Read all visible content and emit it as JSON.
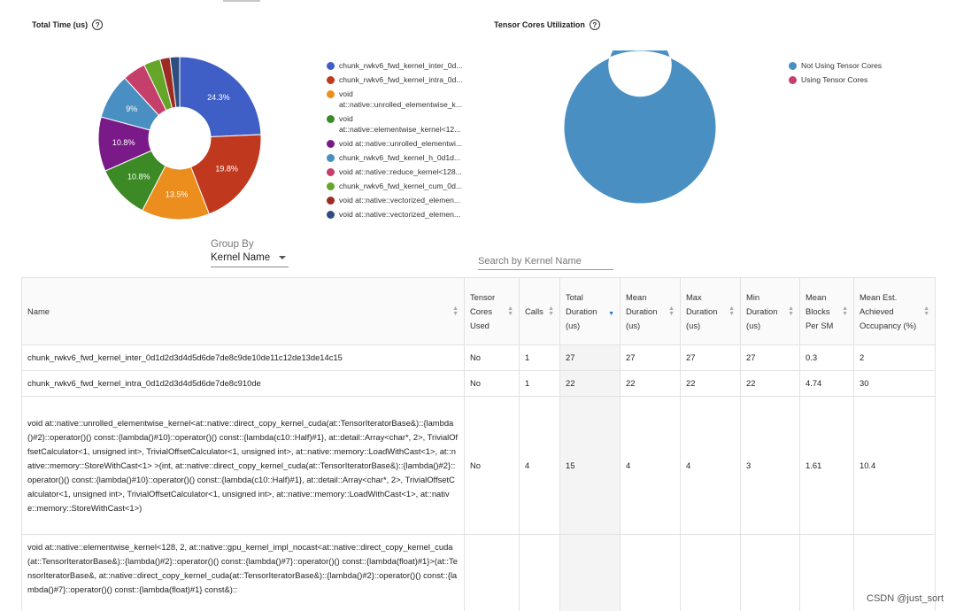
{
  "total_time": {
    "title": "Total Time (us)",
    "help_icon": "?",
    "slices": [
      {
        "value": 24.3,
        "label": "24.3%",
        "color": "#3f5fc7"
      },
      {
        "value": 19.8,
        "label": "19.8%",
        "color": "#c0391f"
      },
      {
        "value": 13.5,
        "label": "13.5%",
        "color": "#eb8e1e"
      },
      {
        "value": 10.8,
        "label": "10.8%",
        "color": "#3b8a25"
      },
      {
        "value": 10.8,
        "label": "10.8%",
        "color": "#7a1a88"
      },
      {
        "value": 9.0,
        "label": "9%",
        "color": "#4a8fc2"
      },
      {
        "value": 4.6,
        "label": "",
        "color": "#c43f6a"
      },
      {
        "value": 3.3,
        "label": "",
        "color": "#64a52a"
      },
      {
        "value": 2.0,
        "label": "",
        "color": "#9e2b23"
      },
      {
        "value": 1.9,
        "label": "",
        "color": "#2e4f7e"
      }
    ],
    "legend": [
      {
        "text": "chunk_rwkv6_fwd_kernel_inter_0d...",
        "color": "#3f5fc7"
      },
      {
        "text": "chunk_rwkv6_fwd_kernel_intra_0d...",
        "color": "#c0391f"
      },
      {
        "text": "void\nat::native::unrolled_elementwise_k...",
        "color": "#eb8e1e"
      },
      {
        "text": "void\nat::native::elementwise_kernel<12...",
        "color": "#3b8a25"
      },
      {
        "text": "void at::native::unrolled_elementwi...",
        "color": "#7a1a88"
      },
      {
        "text": "chunk_rwkv6_fwd_kernel_h_0d1d...",
        "color": "#4a8fc2"
      },
      {
        "text": "void at::native::reduce_kernel<128...",
        "color": "#c43f6a"
      },
      {
        "text": "chunk_rwkv6_fwd_kernel_cum_0d...",
        "color": "#64a52a"
      },
      {
        "text": "void at::native::vectorized_elemen...",
        "color": "#9e2b23"
      },
      {
        "text": "void at::native::vectorized_elemen...",
        "color": "#2e4f7e"
      }
    ]
  },
  "tensor_cores": {
    "title": "Tensor Cores Utilization",
    "help_icon": "?",
    "slices": [
      {
        "value": 100,
        "label": "",
        "color": "#4a8fc2"
      },
      {
        "value": 0,
        "label": "",
        "color": "#c43f6a"
      }
    ],
    "legend": [
      {
        "text": "Not Using Tensor Cores",
        "color": "#4a8fc2"
      },
      {
        "text": "Using Tensor Cores",
        "color": "#c43f6a"
      }
    ]
  },
  "group_by": {
    "label": "Group By",
    "value": "Kernel Name"
  },
  "search": {
    "placeholder": "Search by Kernel Name"
  },
  "table": {
    "headers": [
      "Name",
      "Tensor Cores Used",
      "Calls",
      "Total Duration (us)",
      "Mean Duration (us)",
      "Max Duration (us)",
      "Min Duration (us)",
      "Mean Blocks Per SM",
      "Mean Est. Achieved Occupancy (%)"
    ],
    "rows": [
      [
        "chunk_rwkv6_fwd_kernel_inter_0d1d2d3d4d5d6de7de8c9de10de11c12de13de14c15",
        "No",
        "1",
        "27",
        "27",
        "27",
        "27",
        "0.3",
        "2"
      ],
      [
        "chunk_rwkv6_fwd_kernel_intra_0d1d2d3d4d5d6de7de8c910de",
        "No",
        "1",
        "22",
        "22",
        "22",
        "22",
        "4.74",
        "30"
      ],
      [
        "void at::native::unrolled_elementwise_kernel<at::native::direct_copy_kernel_cuda(at::TensorIteratorBase&)::{lambda()#2}::operator()() const::{lambda()#10}::operator()() const::{lambda(c10::Half)#1}, at::detail::Array<char*, 2>, TrivialOffsetCalculator<1, unsigned int>, TrivialOffsetCalculator<1, unsigned int>, at::native::memory::LoadWithCast<1>, at::native::memory::StoreWithCast<1> >(int, at::native::direct_copy_kernel_cuda(at::TensorIteratorBase&)::{lambda()#2}::operator()() const::{lambda()#10}::operator()() const::{lambda(c10::Half)#1}, at::detail::Array<char*, 2>, TrivialOffsetCalculator<1, unsigned int>, TrivialOffsetCalculator<1, unsigned int>, at::native::memory::LoadWithCast<1>, at::native::memory::StoreWithCast<1>)",
        "No",
        "4",
        "15",
        "4",
        "4",
        "3",
        "1.61",
        "10.4"
      ],
      [
        "void at::native::elementwise_kernel<128, 2, at::native::gpu_kernel_impl_nocast<at::native::direct_copy_kernel_cuda(at::TensorIteratorBase&)::{lambda()#2}::operator()() const::{lambda()#7}::operator()() const::{lambda(float)#1}>(at::TensorIteratorBase&, at::native::direct_copy_kernel_cuda(at::TensorIteratorBase&)::{lambda()#2}::operator()() const::{lambda()#7}::operator()() const::{lambda(float)#1} const&)::",
        "",
        "",
        "",
        "",
        "",
        "",
        "",
        ""
      ]
    ]
  },
  "watermark": "CSDN @just_sort"
}
